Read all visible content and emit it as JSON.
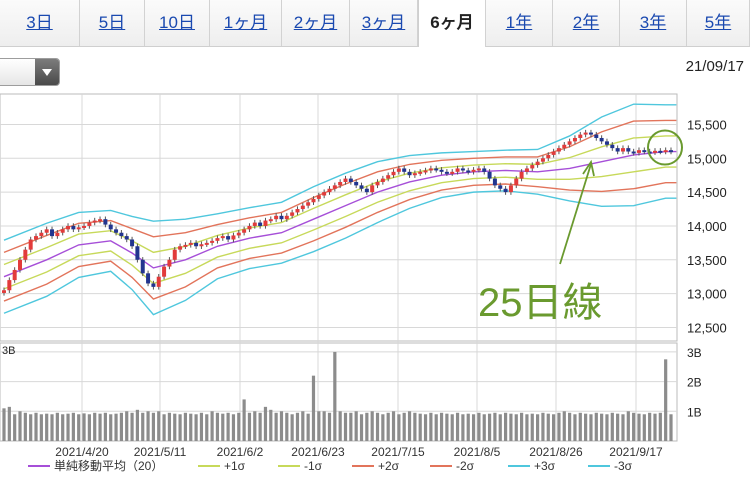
{
  "tabs": [
    {
      "label": "3日",
      "active": false
    },
    {
      "label": "5日",
      "active": false
    },
    {
      "label": "10日",
      "active": false
    },
    {
      "label": "1ヶ月",
      "active": false
    },
    {
      "label": "2ヶ月",
      "active": false
    },
    {
      "label": "3ヶ月",
      "active": false
    },
    {
      "label": "6ヶ月",
      "active": true
    },
    {
      "label": "1年",
      "active": false
    },
    {
      "label": "2年",
      "active": false
    },
    {
      "label": "3年",
      "active": false
    },
    {
      "label": "5年",
      "active": false
    }
  ],
  "date_stamp": "21/09/17",
  "annotation": {
    "text": "25日線",
    "color": "#6a9a2f"
  },
  "colors": {
    "ma": "#a64fd8",
    "plus1": "#c7d95a",
    "minus1": "#c7d95a",
    "plus2": "#e2745b",
    "minus2": "#e2745b",
    "plus3": "#4fc7dd",
    "minus3": "#4fc7dd",
    "up_candle": "#e23b3b",
    "down_candle": "#22358f",
    "volume": "#8c8c8c"
  },
  "chart_data": {
    "type": "line",
    "x_tick_labels": [
      "2021/4/20",
      "2021/5/11",
      "2021/6/2",
      "2021/6/23",
      "2021/7/15",
      "2021/8/5",
      "2021/8/26",
      "2021/9/17"
    ],
    "price_axis": {
      "ticks": [
        "15,500",
        "15,000",
        "14,500",
        "14,000",
        "13,500",
        "13,000",
        "12,500"
      ],
      "ylim": [
        12300,
        15950
      ]
    },
    "volume_axis": {
      "ticks": [
        "3B",
        "2B",
        "1B"
      ],
      "ylim": [
        0,
        3.3
      ]
    },
    "legend": [
      {
        "key": "ma",
        "label": "単純移動平均（20）"
      },
      {
        "key": "plus1",
        "label": "+1σ"
      },
      {
        "key": "minus1",
        "label": "-1σ"
      },
      {
        "key": "plus2",
        "label": "+2σ"
      },
      {
        "key": "minus2",
        "label": "-2σ"
      },
      {
        "key": "plus3",
        "label": "+3σ"
      },
      {
        "key": "minus3",
        "label": "-3σ"
      }
    ],
    "bands": {
      "x": [
        0,
        8,
        14,
        20,
        24,
        28,
        34,
        40,
        46,
        52,
        58,
        64,
        70,
        76,
        82,
        88,
        94,
        100,
        106,
        112,
        118,
        124,
        126
      ],
      "ma": [
        13250,
        13500,
        13720,
        13780,
        13600,
        13380,
        13500,
        13700,
        13820,
        13900,
        14100,
        14300,
        14500,
        14650,
        14750,
        14800,
        14820,
        14800,
        14850,
        14950,
        15050,
        15100,
        15100
      ],
      "sigma": [
        180,
        180,
        160,
        150,
        180,
        230,
        200,
        160,
        150,
        150,
        160,
        160,
        150,
        130,
        110,
        100,
        100,
        110,
        160,
        220,
        250,
        230,
        230
      ]
    },
    "candles_close": [
      13050,
      13200,
      13350,
      13500,
      13650,
      13800,
      13850,
      13900,
      13950,
      13850,
      13900,
      13950,
      14000,
      13950,
      13980,
      14000,
      14050,
      14080,
      14100,
      14020,
      13950,
      13900,
      13850,
      13800,
      13700,
      13500,
      13300,
      13150,
      13100,
      13250,
      13400,
      13500,
      13650,
      13700,
      13720,
      13750,
      13700,
      13730,
      13750,
      13780,
      13820,
      13850,
      13800,
      13860,
      13900,
      13950,
      14000,
      14050,
      14000,
      14080,
      14100,
      14150,
      14100,
      14150,
      14200,
      14250,
      14300,
      14350,
      14400,
      14450,
      14500,
      14550,
      14600,
      14650,
      14700,
      14650,
      14600,
      14550,
      14500,
      14600,
      14650,
      14700,
      14750,
      14800,
      14850,
      14800,
      14750,
      14780,
      14800,
      14820,
      14850,
      14830,
      14800,
      14780,
      14800,
      14850,
      14820,
      14800,
      14830,
      14850,
      14800,
      14700,
      14600,
      14550,
      14500,
      14600,
      14700,
      14800,
      14850,
      14900,
      14950,
      15000,
      15050,
      15100,
      15150,
      15200,
      15250,
      15300,
      15350,
      15380,
      15350,
      15300,
      15250,
      15200,
      15150,
      15100,
      15150,
      15100,
      15080,
      15120,
      15100,
      15090,
      15110,
      15100,
      15120,
      15100
    ],
    "volumes": [
      1.1,
      1.15,
      0.9,
      1.0,
      0.95,
      0.9,
      0.95,
      0.9,
      0.92,
      0.9,
      0.95,
      0.9,
      0.92,
      0.95,
      0.9,
      0.93,
      0.9,
      0.95,
      0.92,
      0.95,
      0.9,
      0.92,
      0.95,
      1.0,
      0.95,
      1.05,
      0.95,
      1.0,
      0.95,
      1.0,
      0.9,
      0.95,
      0.92,
      0.9,
      0.95,
      0.92,
      0.9,
      0.95,
      0.9,
      1.0,
      0.95,
      0.92,
      0.95,
      0.9,
      0.95,
      1.4,
      0.95,
      1.0,
      0.95,
      1.15,
      1.05,
      0.95,
      1.0,
      0.95,
      0.9,
      0.95,
      1.0,
      0.92,
      2.2,
      1.0,
      1.0,
      0.95,
      3.0,
      1.0,
      0.95,
      0.95,
      1.0,
      0.9,
      0.95,
      1.0,
      0.95,
      0.9,
      0.95,
      1.0,
      0.9,
      0.95,
      1.0,
      0.95,
      0.92,
      0.9,
      0.95,
      0.9,
      0.95,
      0.92,
      0.9,
      0.95,
      0.9,
      0.92,
      0.9,
      0.95,
      0.9,
      0.92,
      0.95,
      0.9,
      0.95,
      0.92,
      0.9,
      0.95,
      0.9,
      0.92,
      0.9,
      0.95,
      0.92,
      0.9,
      0.95,
      1.0,
      0.95,
      0.9,
      0.95,
      0.92,
      0.9,
      0.95,
      0.92,
      0.9,
      0.95,
      0.92,
      0.9,
      1.0,
      0.95,
      0.92,
      0.9,
      0.95,
      0.92,
      0.95,
      2.75,
      0.9
    ]
  }
}
